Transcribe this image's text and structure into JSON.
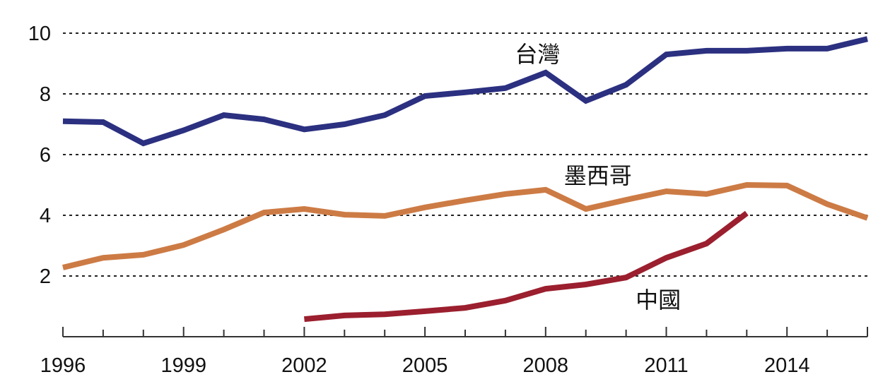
{
  "chart_data": {
    "type": "line",
    "title": "",
    "xlabel": "",
    "ylabel": "",
    "xlim": [
      1996,
      2016
    ],
    "ylim": [
      0,
      10
    ],
    "grid": "horizontal-dotted",
    "y_ticks": [
      2,
      4,
      6,
      8,
      10
    ],
    "y_tick_labels": [
      "2",
      "4",
      "6",
      "8",
      "10"
    ],
    "x_ticks": [
      1996,
      1997,
      1998,
      1999,
      2000,
      2001,
      2002,
      2003,
      2004,
      2005,
      2006,
      2007,
      2008,
      2009,
      2010,
      2011,
      2012,
      2013,
      2014,
      2015,
      2016
    ],
    "x_tick_labels": [
      {
        "year": 1996,
        "label": "1996"
      },
      {
        "year": 1999,
        "label": "1999"
      },
      {
        "year": 2002,
        "label": "2002"
      },
      {
        "year": 2005,
        "label": "2005"
      },
      {
        "year": 2008,
        "label": "2008"
      },
      {
        "year": 2011,
        "label": "2011"
      },
      {
        "year": 2014,
        "label": "2014"
      }
    ],
    "series": [
      {
        "name": "台灣",
        "color": "#2b3080",
        "label_anchor": {
          "year": 2007.8,
          "value": 9.05
        },
        "x": [
          1996,
          1997,
          1998,
          1999,
          2000,
          2001,
          2002,
          2003,
          2004,
          2005,
          2006,
          2007,
          2008,
          2009,
          2010,
          2011,
          2012,
          2013,
          2014,
          2015,
          2016
        ],
        "values": [
          7.1,
          7.07,
          6.37,
          6.8,
          7.3,
          7.16,
          6.83,
          7.0,
          7.3,
          7.93,
          8.05,
          8.19,
          8.7,
          7.77,
          8.3,
          9.3,
          9.42,
          9.42,
          9.49,
          9.49,
          9.81
        ]
      },
      {
        "name": "墨西哥",
        "color": "#cd7b45",
        "label_anchor": {
          "year": 2009.3,
          "value": 5.05
        },
        "x": [
          1996,
          1997,
          1998,
          1999,
          2000,
          2001,
          2002,
          2003,
          2004,
          2005,
          2006,
          2007,
          2008,
          2009,
          2010,
          2011,
          2012,
          2013,
          2014,
          2015,
          2016
        ],
        "values": [
          2.28,
          2.6,
          2.7,
          3.02,
          3.53,
          4.09,
          4.21,
          4.02,
          3.98,
          4.26,
          4.49,
          4.7,
          4.84,
          4.21,
          4.51,
          4.79,
          4.7,
          5.0,
          4.98,
          4.37,
          3.91
        ]
      },
      {
        "name": "中國",
        "color": "#9b1f2e",
        "label_anchor": {
          "year": 2010.8,
          "value": 0.95
        },
        "x": [
          2002,
          2003,
          2004,
          2005,
          2006,
          2007,
          2008,
          2009,
          2010,
          2011,
          2012,
          2013
        ],
        "values": [
          0.58,
          0.7,
          0.74,
          0.84,
          0.95,
          1.19,
          1.58,
          1.72,
          1.95,
          2.6,
          3.07,
          4.07
        ]
      }
    ]
  }
}
